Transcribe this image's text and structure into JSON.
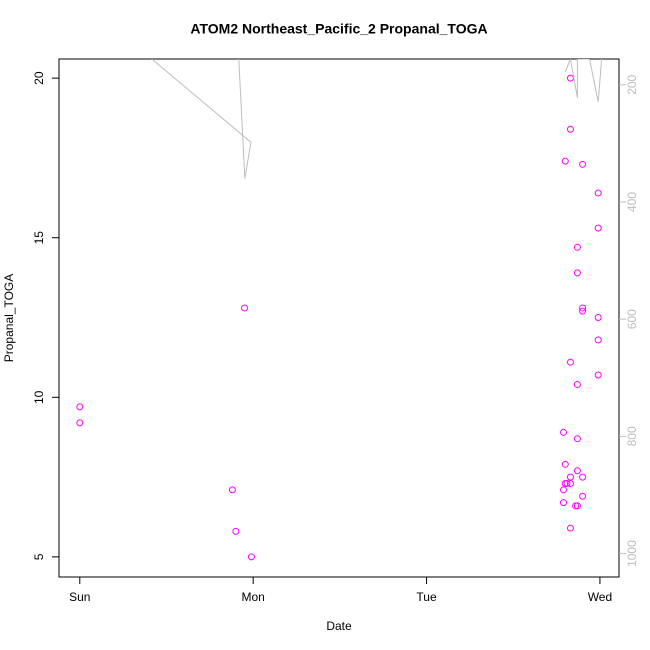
{
  "chart_data": {
    "type": "scatter",
    "title": "ATOM2 Northeast_Pacific_2 Propanal_TOGA",
    "x_label": "Date",
    "y_label": "Propanal_TOGA",
    "xlim": [
      -0.12,
      3.11
    ],
    "xticks": [
      {
        "value": 0,
        "label": "Sun"
      },
      {
        "value": 1,
        "label": "Mon"
      },
      {
        "value": 2,
        "label": "Tue"
      },
      {
        "value": 3,
        "label": "Wed"
      }
    ],
    "ylim": [
      4.37,
      20.6
    ],
    "yticks": [
      5,
      10,
      15,
      20
    ],
    "y2lim": [
      1040,
      156
    ],
    "y2ticks": [
      200,
      400,
      600,
      800,
      1000
    ],
    "series": [
      {
        "color": "#ff00ff",
        "x": [
          0,
          0,
          0.95,
          0.88,
          0.9,
          0.99,
          2.83,
          2.83,
          2.8,
          2.9,
          2.99,
          2.99,
          2.87,
          2.87,
          2.9,
          2.9,
          2.99,
          2.99,
          2.83,
          2.99,
          2.87,
          2.79,
          2.87,
          2.8,
          2.87,
          2.83,
          2.9,
          2.8,
          2.81,
          2.83,
          2.79,
          2.9,
          2.79,
          2.86,
          2.87,
          2.83
        ],
        "values": [
          9.7,
          9.2,
          12.8,
          7.1,
          5.8,
          5.0,
          20.0,
          18.4,
          17.4,
          17.3,
          16.4,
          15.3,
          14.7,
          13.9,
          12.8,
          12.7,
          12.5,
          11.8,
          11.1,
          10.7,
          10.4,
          8.9,
          8.7,
          7.9,
          7.7,
          7.5,
          7.5,
          7.3,
          7.3,
          7.3,
          7.1,
          6.9,
          6.7,
          6.6,
          6.6,
          5.9
        ]
      },
      {
        "color": "#bdbdbd",
        "axis": "y2",
        "x": [
          0.415,
          0.987,
          0.952,
          0.917,
          2.9,
          2.8,
          2.83,
          2.87,
          2.87,
          2.94,
          2.99,
          3.01
        ],
        "values": [
          156,
          298,
          360,
          156,
          null,
          178,
          156,
          222,
          156,
          156,
          229,
          156
        ]
      }
    ]
  }
}
